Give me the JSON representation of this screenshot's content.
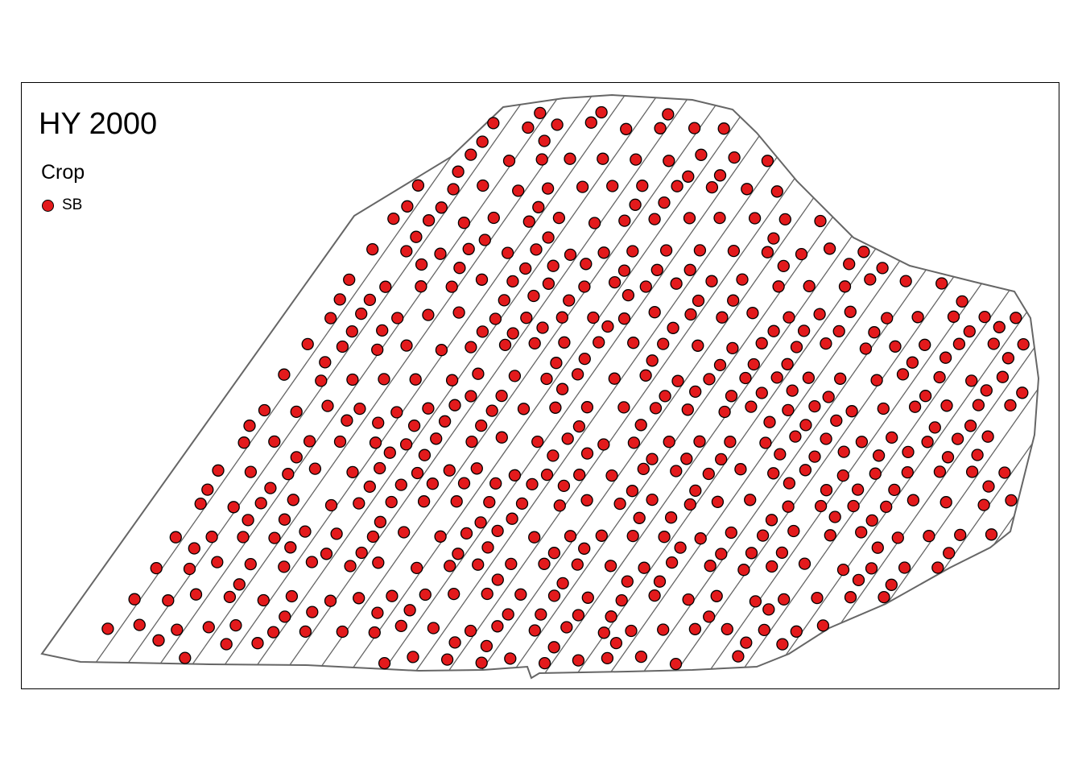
{
  "map": {
    "title": "HY 2000",
    "legend": {
      "title": "Crop",
      "items": [
        {
          "label": "SB",
          "color": "#e31a1c"
        }
      ]
    },
    "style": {
      "point_fill": "#e31a1c",
      "point_stroke": "#000000",
      "strip_stroke": "#666666"
    }
  }
}
